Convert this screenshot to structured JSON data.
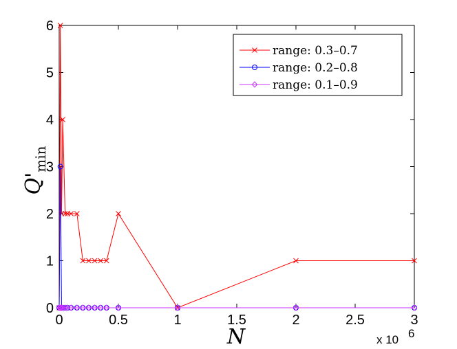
{
  "chart_data": {
    "type": "line",
    "xlabel": "N",
    "ylabel": "Q'",
    "ylabel_subscript": "min",
    "x_multiplier_label": "x 10",
    "x_multiplier_exp": "6",
    "xlim": [
      0,
      3
    ],
    "ylim": [
      0,
      6
    ],
    "xticks": [
      "0",
      "0.5",
      "1",
      "1.5",
      "2",
      "2.5",
      "3"
    ],
    "yticks": [
      "0",
      "1",
      "2",
      "3",
      "4",
      "5",
      "6"
    ],
    "grid": false,
    "legend_position": "top-right",
    "series": [
      {
        "name": "range: 0.3–0.7",
        "color": "#ff0000",
        "marker": "x",
        "x": [
          0,
          0.01,
          0.02,
          0.03,
          0.05,
          0.07,
          0.1,
          0.15,
          0.2,
          0.25,
          0.3,
          0.35,
          0.4,
          0.5,
          1,
          2,
          3
        ],
        "y": [
          0,
          6,
          2,
          4,
          2,
          2,
          2,
          2,
          1,
          1,
          1,
          1,
          1,
          2,
          0,
          1,
          1
        ]
      },
      {
        "name": "range: 0.2–0.8",
        "color": "#0000ff",
        "marker": "o",
        "x": [
          0,
          0.01,
          0.02,
          0.03,
          0.05,
          0.07,
          0.1,
          0.15,
          0.2,
          0.25,
          0.3,
          0.35,
          0.4,
          0.5,
          1,
          2,
          3
        ],
        "y": [
          0,
          3,
          0,
          0,
          0,
          0,
          0,
          0,
          0,
          0,
          0,
          0,
          0,
          0,
          0,
          0,
          0
        ]
      },
      {
        "name": "range: 0.1–0.9",
        "color": "#cc33ff",
        "marker": "diamond",
        "x": [
          0,
          0.01,
          0.02,
          0.03,
          0.05,
          0.07,
          0.1,
          0.15,
          0.2,
          0.25,
          0.3,
          0.35,
          0.4,
          0.5,
          1,
          2,
          3
        ],
        "y": [
          0,
          0,
          0,
          0,
          0,
          0,
          0,
          0,
          0,
          0,
          0,
          0,
          0,
          0,
          0,
          0,
          0
        ]
      }
    ]
  }
}
